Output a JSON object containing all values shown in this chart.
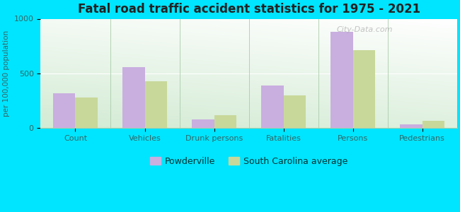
{
  "title": "Fatal road traffic accident statistics for 1975 - 2021",
  "categories": [
    "Count",
    "Vehicles",
    "Drunk persons",
    "Fatalities",
    "Persons",
    "Pedestrians"
  ],
  "powderville": [
    320,
    560,
    75,
    390,
    880,
    35
  ],
  "sc_average": [
    280,
    430,
    120,
    295,
    710,
    65
  ],
  "ylabel": "per 100,000 population",
  "ylim": [
    0,
    1000
  ],
  "yticks": [
    0,
    500,
    1000
  ],
  "color_powderville": "#c9aee0",
  "color_sc_average": "#c8d89a",
  "background_top": "#ffffff",
  "background_bottom": "#c8e6c9",
  "outer_background": "#00e5ff",
  "legend_label_1": "Powderville",
  "legend_label_2": "South Carolina average",
  "watermark": "City-Data.com",
  "bar_width": 0.32
}
